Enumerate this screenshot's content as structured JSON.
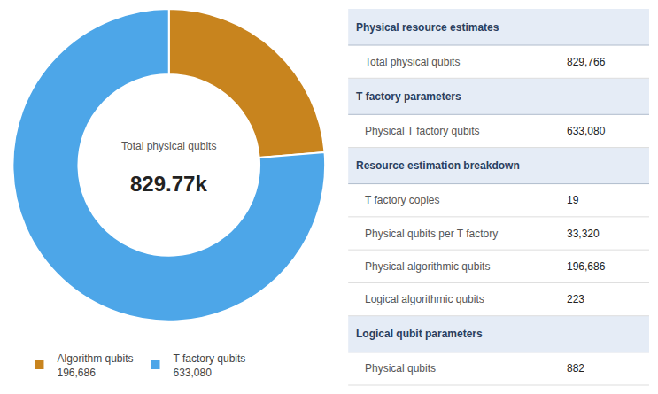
{
  "chart_data": [
    {
      "type": "donut",
      "labels": [
        "Algorithm qubits",
        "T factory qubits"
      ],
      "values": [
        196686,
        633080
      ],
      "value_labels": [
        "196,686",
        "633,080"
      ],
      "colors": [
        "#c8841e",
        "#4da6e8"
      ],
      "annotations": [
        "Total physical qubits",
        "829.77k"
      ],
      "legend": "bottom"
    },
    {
      "type": "table",
      "sections": [
        {
          "header": "Physical resource estimates",
          "rows": [
            {
              "label": "Total physical qubits",
              "value": "829,766"
            }
          ]
        },
        {
          "header": "T factory parameters",
          "rows": [
            {
              "label": "Physical T factory qubits",
              "value": "633,080"
            }
          ]
        },
        {
          "header": "Resource estimation breakdown",
          "rows": [
            {
              "label": "T factory copies",
              "value": "19"
            },
            {
              "label": "Physical qubits per T factory",
              "value": "33,320"
            },
            {
              "label": "Physical algorithmic qubits",
              "value": "196,686"
            },
            {
              "label": "Logical algorithmic qubits",
              "value": "223"
            }
          ]
        },
        {
          "header": "Logical qubit parameters",
          "rows": [
            {
              "label": "Physical qubits",
              "value": "882"
            }
          ]
        }
      ]
    }
  ]
}
